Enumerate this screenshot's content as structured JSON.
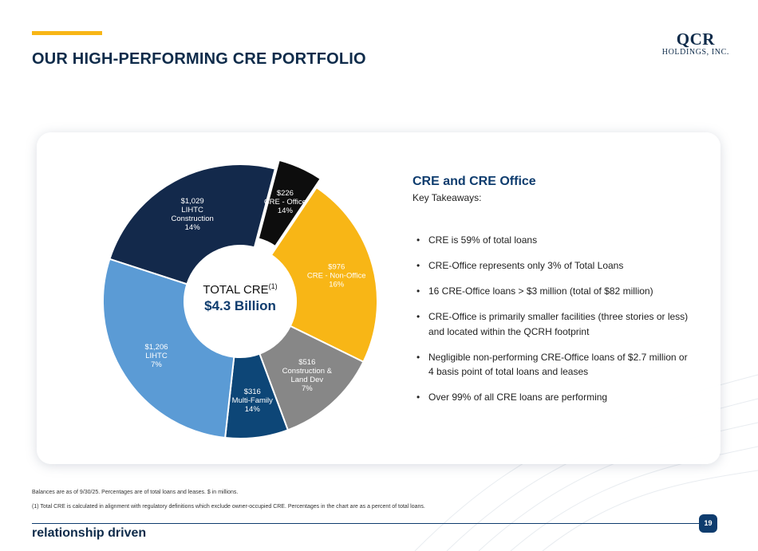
{
  "header": {
    "title": "OUR HIGH-PERFORMING CRE PORTFOLIO",
    "logo_top": "QCR",
    "logo_bottom": "HOLDINGS, INC."
  },
  "chart_data": {
    "type": "pie",
    "center_title": "TOTAL CRE",
    "center_title_sup": "(1)",
    "center_value": "$4.3 Billion",
    "slices": [
      {
        "amount": "$1,029",
        "name": "LIHTC Construction",
        "pct": "14%",
        "value": 1029,
        "color": "#13294b",
        "text_color": "#ffffff"
      },
      {
        "amount": "$226",
        "name": "CRE - Office",
        "pct": "14%",
        "value": 226,
        "color": "#0d0d0d",
        "text_color": "#ffffff",
        "exploded": true
      },
      {
        "amount": "$976",
        "name": "CRE - Non-Office",
        "pct": "16%",
        "value": 976,
        "color": "#f8b616",
        "text_color": "#ffffff"
      },
      {
        "amount": "$516",
        "name": "Construction & Land Dev",
        "pct": "7%",
        "value": 516,
        "color": "#878787",
        "text_color": "#ffffff"
      },
      {
        "amount": "$316",
        "name": "Multi-Family",
        "pct": "14%",
        "value": 316,
        "color": "#0d4677",
        "text_color": "#ffffff"
      },
      {
        "amount": "$1,206",
        "name": "LIHTC",
        "pct": "7%",
        "value": 1206,
        "color": "#5b9bd5",
        "text_color": "#ffffff"
      }
    ]
  },
  "panel": {
    "heading": "CRE and CRE Office",
    "subheading": "Key Takeaways:",
    "bullets": [
      "CRE is 59% of total loans",
      "CRE-Office represents only 3% of Total Loans",
      "16 CRE-Office loans > $3 million (total of $82 million)",
      "CRE-Office is primarily smaller facilities (three stories or less) and located within the QCRH footprint",
      "Negligible non-performing CRE-Office loans of $2.7 million or 4 basis point of total loans and leases",
      "Over 99% of all CRE loans are performing"
    ]
  },
  "footer": {
    "note1": "Balances are as of 9/30/25. Percentages are of total loans and leases. $ in millions.",
    "note2": "(1)  Total CRE is calculated in alignment with regulatory definitions which exclude owner-occupied CRE. Percentages in the chart are as a percent of total loans.",
    "tagline": "relationship driven",
    "page_number": "19"
  },
  "colors": {
    "accent": "#f8b616",
    "brand_navy": "#0e2b4a",
    "heading_blue": "#0e3c6e"
  }
}
